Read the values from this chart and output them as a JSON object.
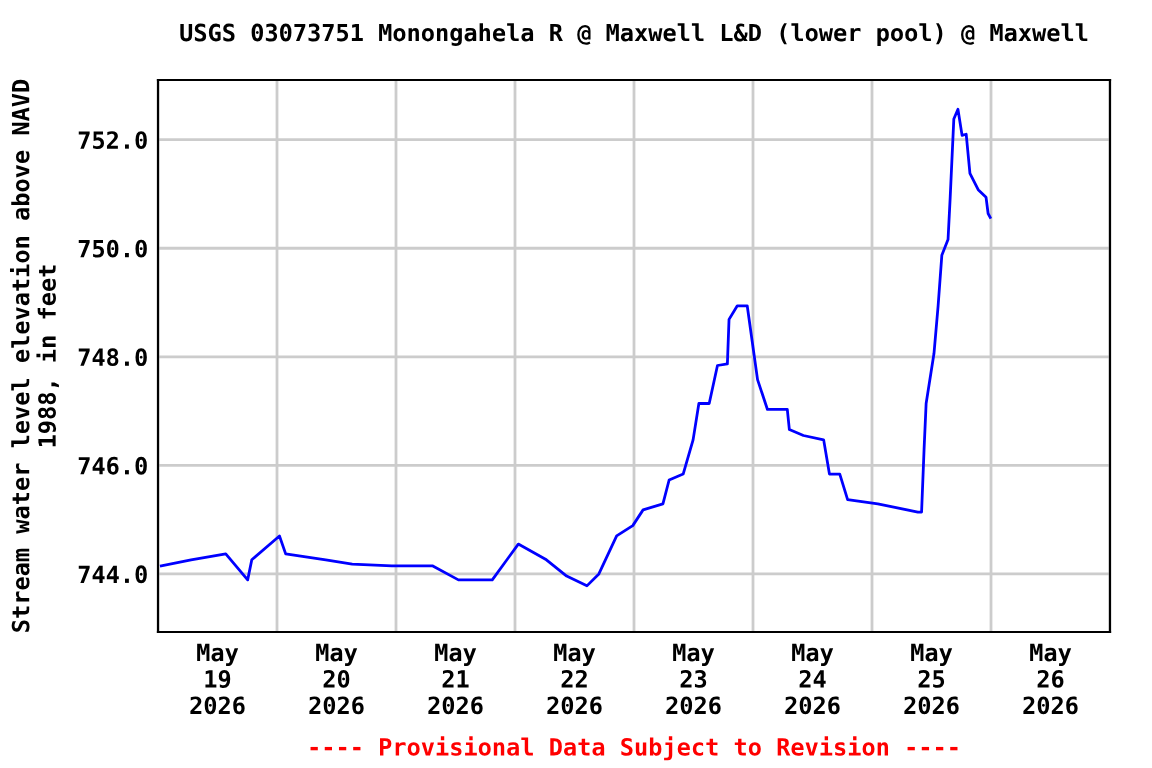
{
  "chart_data": {
    "type": "line",
    "title": "USGS 03073751 Monongahela R @ Maxwell L&D (lower pool) @ Maxwell",
    "ylabel": "Stream water level elevation above NAVD\n1988, in feet",
    "annotations": [
      "---- Provisional Data Subject to Revision ----"
    ],
    "grid": true,
    "marker": "none",
    "line_style": "solid",
    "xlim": [
      "2026-05-19",
      "2026-05-27"
    ],
    "xticks": [
      {
        "value": "2026-05-19",
        "label": null
      },
      {
        "value": "2026-05-20",
        "label": null
      },
      {
        "value": "2026-05-21",
        "label": null
      },
      {
        "value": "2026-05-22",
        "label": null
      },
      {
        "value": "2026-05-23",
        "label": null
      },
      {
        "value": "2026-05-24",
        "label": null
      },
      {
        "value": "2026-05-25",
        "label": null
      },
      {
        "value": "2026-05-26",
        "label": null
      },
      {
        "value": "2026-05-27",
        "label": null
      },
      {
        "value": "2026-05-19T12:00",
        "label": "May\n19\n2026"
      },
      {
        "value": "2026-05-20T12:00",
        "label": "May\n20\n2026"
      },
      {
        "value": "2026-05-21T12:00",
        "label": "May\n21\n2026"
      },
      {
        "value": "2026-05-22T12:00",
        "label": "May\n22\n2026"
      },
      {
        "value": "2026-05-23T12:00",
        "label": "May\n23\n2026"
      },
      {
        "value": "2026-05-24T12:00",
        "label": "May\n24\n2026"
      },
      {
        "value": "2026-05-25T12:00",
        "label": "May\n25\n2026"
      },
      {
        "value": "2026-05-26T12:00",
        "label": "May\n26\n2026"
      }
    ],
    "ylim": [
      742.93,
      753.1
    ],
    "yticks": [
      {
        "value": 744,
        "label": "744.0"
      },
      {
        "value": 746,
        "label": "746.0"
      },
      {
        "value": 748,
        "label": "748.0"
      },
      {
        "value": 750,
        "label": "750.0"
      },
      {
        "value": 752,
        "label": "752.0"
      }
    ],
    "series": [
      {
        "color": "#0000ff",
        "x": [
          "2026-05-19T00:40",
          "2026-05-19T06:40",
          "2026-05-19T13:40",
          "2026-05-19T18:05",
          "2026-05-19T18:55",
          "2026-05-20T00:30",
          "2026-05-20T01:45",
          "2026-05-20T09:50",
          "2026-05-20T15:10",
          "2026-05-20T23:10",
          "2026-05-21T07:20",
          "2026-05-21T12:35",
          "2026-05-21T19:25",
          "2026-05-22T00:40",
          "2026-05-22T06:20",
          "2026-05-22T10:25",
          "2026-05-22T14:30",
          "2026-05-22T16:55",
          "2026-05-22T20:30",
          "2026-05-22T23:45",
          "2026-05-23T01:50",
          "2026-05-23T05:50",
          "2026-05-23T07:05",
          "2026-05-23T09:55",
          "2026-05-23T11:55",
          "2026-05-23T13:05",
          "2026-05-23T15:10",
          "2026-05-23T16:50",
          "2026-05-23T18:50",
          "2026-05-23T19:10",
          "2026-05-23T20:50",
          "2026-05-23T22:50",
          "2026-05-24T00:55",
          "2026-05-24T02:55",
          "2026-05-24T06:55",
          "2026-05-24T07:20",
          "2026-05-24T10:10",
          "2026-05-24T14:15",
          "2026-05-24T15:25",
          "2026-05-24T17:30",
          "2026-05-24T19:05",
          "2026-05-25T01:10",
          "2026-05-25T09:15",
          "2026-05-25T10:00",
          "2026-05-25T10:30",
          "2026-05-25T10:55",
          "2026-05-25T12:30",
          "2026-05-25T13:20",
          "2026-05-25T14:05",
          "2026-05-25T15:20",
          "2026-05-25T15:45",
          "2026-05-25T16:30",
          "2026-05-25T17:20",
          "2026-05-25T18:10",
          "2026-05-25T19:00",
          "2026-05-25T19:45",
          "2026-05-25T21:25",
          "2026-05-25T23:00",
          "2026-05-25T23:25",
          "2026-05-25T23:50"
        ],
        "values": [
          744.15,
          744.26,
          744.37,
          743.89,
          744.26,
          744.7,
          744.37,
          744.26,
          744.18,
          744.15,
          744.15,
          743.89,
          743.89,
          744.55,
          744.26,
          743.96,
          743.78,
          744.0,
          744.7,
          744.89,
          745.18,
          745.29,
          745.73,
          745.84,
          746.47,
          747.14,
          747.14,
          747.84,
          747.87,
          748.69,
          748.94,
          748.94,
          747.58,
          747.03,
          747.03,
          746.66,
          746.55,
          746.47,
          745.84,
          745.84,
          745.37,
          745.29,
          745.14,
          745.14,
          746.29,
          747.14,
          748.06,
          748.94,
          749.87,
          750.16,
          750.9,
          752.38,
          752.56,
          752.08,
          752.1,
          751.38,
          751.08,
          750.94,
          750.64,
          750.57
        ]
      }
    ]
  }
}
